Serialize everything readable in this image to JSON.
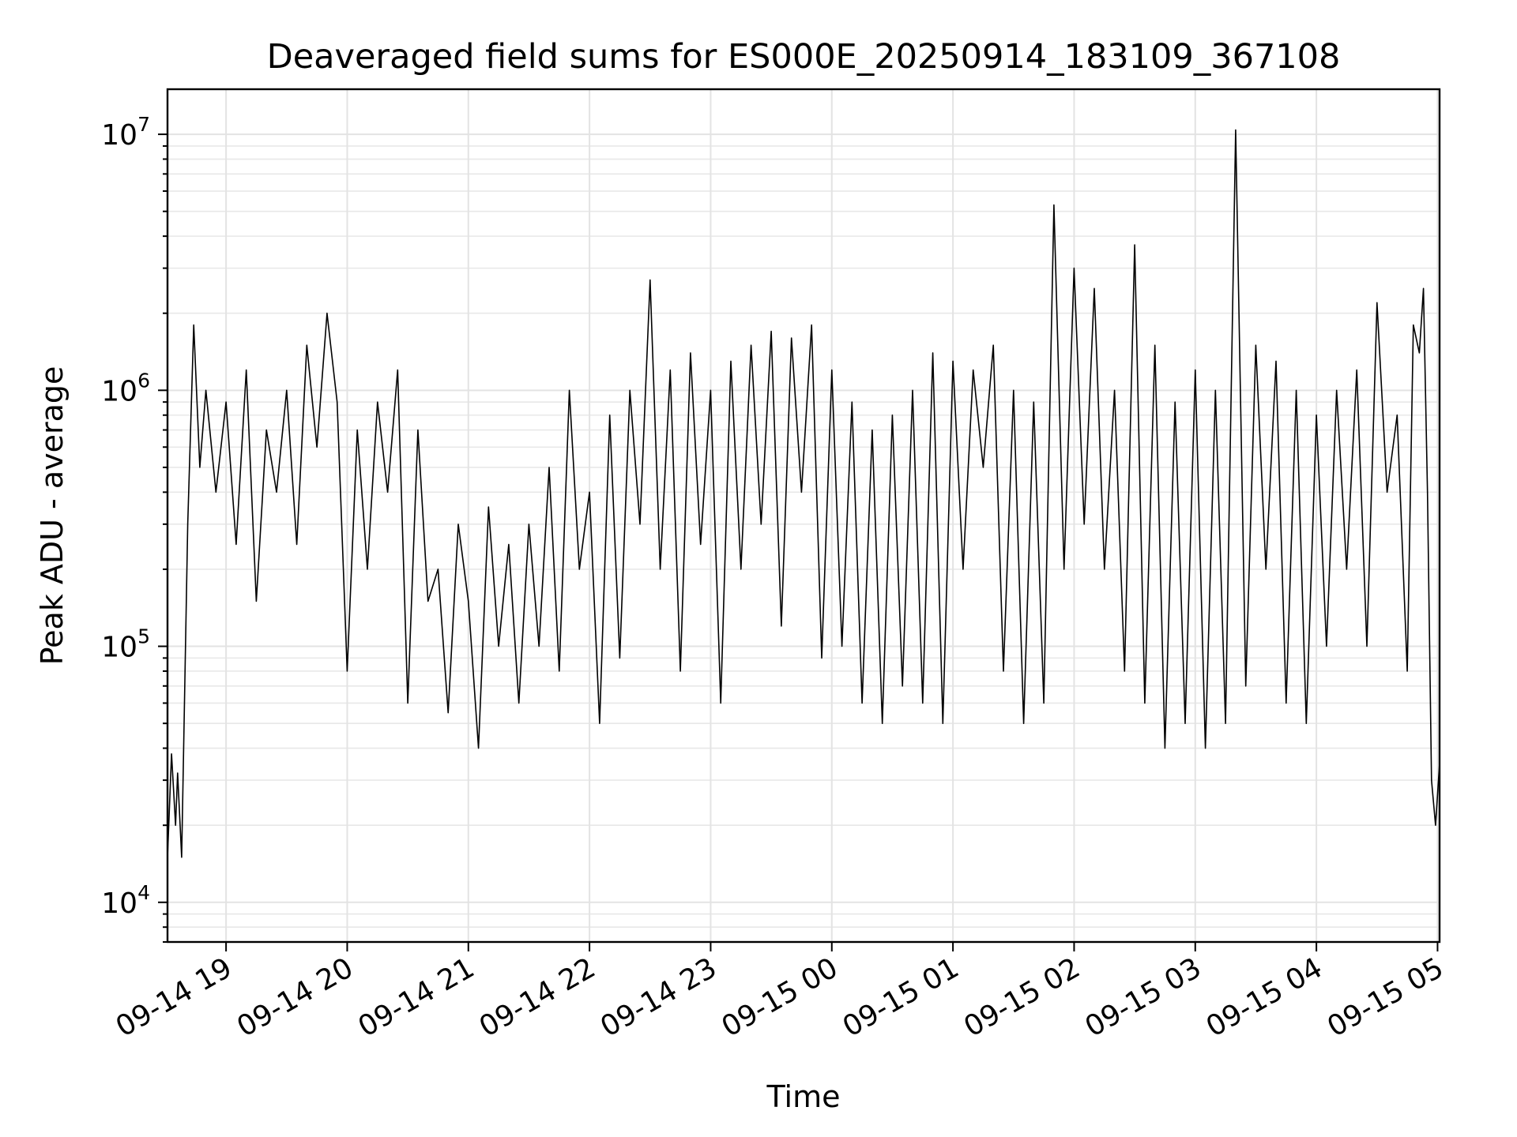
{
  "chart_data": {
    "type": "line",
    "title": "Deaveraged field sums for ES000E_20250914_183109_367108",
    "xlabel": "Time",
    "ylabel": "Peak ADU - average",
    "yscale": "log",
    "ylim": [
      7000,
      15000000
    ],
    "xlim": [
      "2025-09-14 18:31",
      "2025-09-15 05:01"
    ],
    "y_ticks": [
      {
        "base": "10",
        "exp": "4",
        "value": 10000
      },
      {
        "base": "10",
        "exp": "5",
        "value": 100000
      },
      {
        "base": "10",
        "exp": "6",
        "value": 1000000
      },
      {
        "base": "10",
        "exp": "7",
        "value": 10000000
      }
    ],
    "x_ticks": [
      {
        "label": "09-14 19",
        "time": "2025-09-14 19:00"
      },
      {
        "label": "09-14 20",
        "time": "2025-09-14 20:00"
      },
      {
        "label": "09-14 21",
        "time": "2025-09-14 21:00"
      },
      {
        "label": "09-14 22",
        "time": "2025-09-14 22:00"
      },
      {
        "label": "09-14 23",
        "time": "2025-09-14 23:00"
      },
      {
        "label": "09-15 00",
        "time": "2025-09-15 00:00"
      },
      {
        "label": "09-15 01",
        "time": "2025-09-15 01:00"
      },
      {
        "label": "09-15 02",
        "time": "2025-09-15 02:00"
      },
      {
        "label": "09-15 03",
        "time": "2025-09-15 03:00"
      },
      {
        "label": "09-15 04",
        "time": "2025-09-15 04:00"
      },
      {
        "label": "09-15 05",
        "time": "2025-09-15 05:00"
      }
    ],
    "grid": true,
    "line_color": "#000000",
    "series": [
      {
        "x": [
          "2025-09-14 18:31",
          "2025-09-14 18:33",
          "2025-09-14 18:35",
          "2025-09-14 18:36",
          "2025-09-14 18:38",
          "2025-09-14 18:41",
          "2025-09-14 18:44",
          "2025-09-14 18:47",
          "2025-09-14 18:50",
          "2025-09-14 18:55",
          "2025-09-14 19:00",
          "2025-09-14 19:05",
          "2025-09-14 19:10",
          "2025-09-14 19:15",
          "2025-09-14 19:20",
          "2025-09-14 19:25",
          "2025-09-14 19:30",
          "2025-09-14 19:35",
          "2025-09-14 19:40",
          "2025-09-14 19:45",
          "2025-09-14 19:50",
          "2025-09-14 19:55",
          "2025-09-14 20:00",
          "2025-09-14 20:05",
          "2025-09-14 20:10",
          "2025-09-14 20:15",
          "2025-09-14 20:20",
          "2025-09-14 20:25",
          "2025-09-14 20:30",
          "2025-09-14 20:35",
          "2025-09-14 20:40",
          "2025-09-14 20:45",
          "2025-09-14 20:50",
          "2025-09-14 20:55",
          "2025-09-14 21:00",
          "2025-09-14 21:05",
          "2025-09-14 21:10",
          "2025-09-14 21:15",
          "2025-09-14 21:20",
          "2025-09-14 21:25",
          "2025-09-14 21:30",
          "2025-09-14 21:35",
          "2025-09-14 21:40",
          "2025-09-14 21:45",
          "2025-09-14 21:50",
          "2025-09-14 21:55",
          "2025-09-14 22:00",
          "2025-09-14 22:05",
          "2025-09-14 22:10",
          "2025-09-14 22:15",
          "2025-09-14 22:20",
          "2025-09-14 22:25",
          "2025-09-14 22:30",
          "2025-09-14 22:35",
          "2025-09-14 22:40",
          "2025-09-14 22:45",
          "2025-09-14 22:50",
          "2025-09-14 22:55",
          "2025-09-14 23:00",
          "2025-09-14 23:05",
          "2025-09-14 23:10",
          "2025-09-14 23:15",
          "2025-09-14 23:20",
          "2025-09-14 23:25",
          "2025-09-14 23:30",
          "2025-09-14 23:35",
          "2025-09-14 23:40",
          "2025-09-14 23:45",
          "2025-09-14 23:50",
          "2025-09-14 23:55",
          "2025-09-15 00:00",
          "2025-09-15 00:05",
          "2025-09-15 00:10",
          "2025-09-15 00:15",
          "2025-09-15 00:20",
          "2025-09-15 00:25",
          "2025-09-15 00:30",
          "2025-09-15 00:35",
          "2025-09-15 00:40",
          "2025-09-15 00:45",
          "2025-09-15 00:50",
          "2025-09-15 00:55",
          "2025-09-15 01:00",
          "2025-09-15 01:05",
          "2025-09-15 01:10",
          "2025-09-15 01:15",
          "2025-09-15 01:20",
          "2025-09-15 01:25",
          "2025-09-15 01:30",
          "2025-09-15 01:35",
          "2025-09-15 01:40",
          "2025-09-15 01:45",
          "2025-09-15 01:50",
          "2025-09-15 01:55",
          "2025-09-15 02:00",
          "2025-09-15 02:05",
          "2025-09-15 02:10",
          "2025-09-15 02:15",
          "2025-09-15 02:20",
          "2025-09-15 02:25",
          "2025-09-15 02:30",
          "2025-09-15 02:35",
          "2025-09-15 02:40",
          "2025-09-15 02:45",
          "2025-09-15 02:50",
          "2025-09-15 02:55",
          "2025-09-15 03:00",
          "2025-09-15 03:05",
          "2025-09-15 03:10",
          "2025-09-15 03:15",
          "2025-09-15 03:20",
          "2025-09-15 03:25",
          "2025-09-15 03:30",
          "2025-09-15 03:35",
          "2025-09-15 03:40",
          "2025-09-15 03:45",
          "2025-09-15 03:50",
          "2025-09-15 03:55",
          "2025-09-15 04:00",
          "2025-09-15 04:05",
          "2025-09-15 04:10",
          "2025-09-15 04:15",
          "2025-09-15 04:20",
          "2025-09-15 04:25",
          "2025-09-15 04:30",
          "2025-09-15 04:35",
          "2025-09-15 04:40",
          "2025-09-15 04:45",
          "2025-09-15 04:48",
          "2025-09-15 04:51",
          "2025-09-15 04:53",
          "2025-09-15 04:55",
          "2025-09-15 04:57",
          "2025-09-15 04:59",
          "2025-09-15 05:01"
        ],
        "y": [
          15000,
          38000,
          20000,
          32000,
          15000,
          300000,
          1800000,
          500000,
          1000000,
          400000,
          900000,
          250000,
          1200000,
          150000,
          700000,
          400000,
          1000000,
          250000,
          1500000,
          600000,
          2000000,
          900000,
          80000,
          700000,
          200000,
          900000,
          400000,
          1200000,
          60000,
          700000,
          150000,
          200000,
          55000,
          300000,
          150000,
          40000,
          350000,
          100000,
          250000,
          60000,
          300000,
          100000,
          500000,
          80000,
          1000000,
          200000,
          400000,
          50000,
          800000,
          90000,
          1000000,
          300000,
          2700000,
          200000,
          1200000,
          80000,
          1400000,
          250000,
          1000000,
          60000,
          1300000,
          200000,
          1500000,
          300000,
          1700000,
          120000,
          1600000,
          400000,
          1800000,
          90000,
          1200000,
          100000,
          900000,
          60000,
          700000,
          50000,
          800000,
          70000,
          1000000,
          60000,
          1400000,
          50000,
          1300000,
          200000,
          1200000,
          500000,
          1500000,
          80000,
          1000000,
          50000,
          900000,
          60000,
          5300000,
          200000,
          3000000,
          300000,
          2500000,
          200000,
          1000000,
          80000,
          3700000,
          60000,
          1500000,
          40000,
          900000,
          50000,
          1200000,
          40000,
          1000000,
          50000,
          10400000,
          70000,
          1500000,
          200000,
          1300000,
          60000,
          1000000,
          50000,
          800000,
          100000,
          1000000,
          200000,
          1200000,
          100000,
          2200000,
          400000,
          800000,
          80000,
          1800000,
          1400000,
          2500000,
          400000,
          30000,
          20000,
          35000
        ]
      }
    ]
  }
}
